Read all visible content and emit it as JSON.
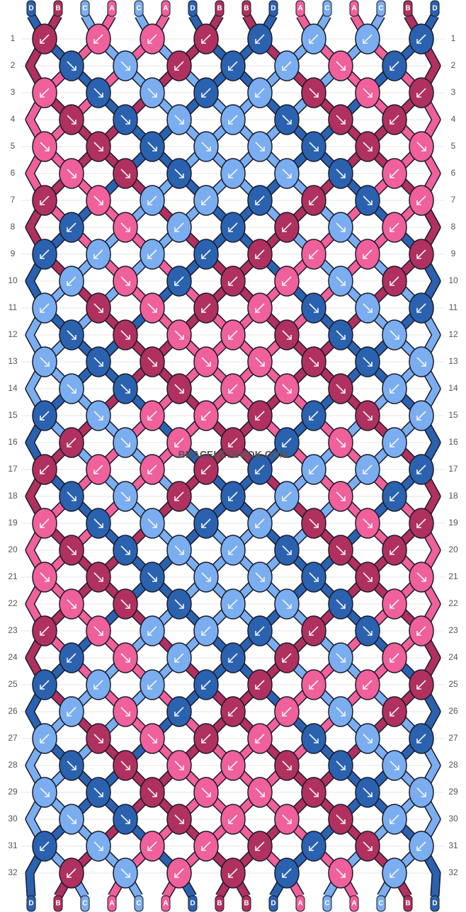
{
  "strands": {
    "top": [
      "D",
      "B",
      "C",
      "A",
      "C",
      "A",
      "D",
      "B",
      "B",
      "D",
      "A",
      "C",
      "A",
      "C",
      "B",
      "D"
    ],
    "bottom": [
      "D",
      "B",
      "C",
      "A",
      "C",
      "A",
      "D",
      "B",
      "B",
      "D",
      "A",
      "C",
      "A",
      "C",
      "B",
      "D"
    ]
  },
  "colors": {
    "A": "#f0609a",
    "B": "#b0305f",
    "C": "#7aaef0",
    "D": "#2a62b0"
  },
  "rows": [
    1,
    2,
    3,
    4,
    5,
    6,
    7,
    8,
    9,
    10,
    11,
    12,
    13,
    14,
    15,
    16,
    17,
    18,
    19,
    20,
    21,
    22,
    23,
    24,
    25,
    26,
    27,
    28,
    29,
    30,
    31,
    32
  ],
  "watermark": "BRACELETBOOK.COM"
}
